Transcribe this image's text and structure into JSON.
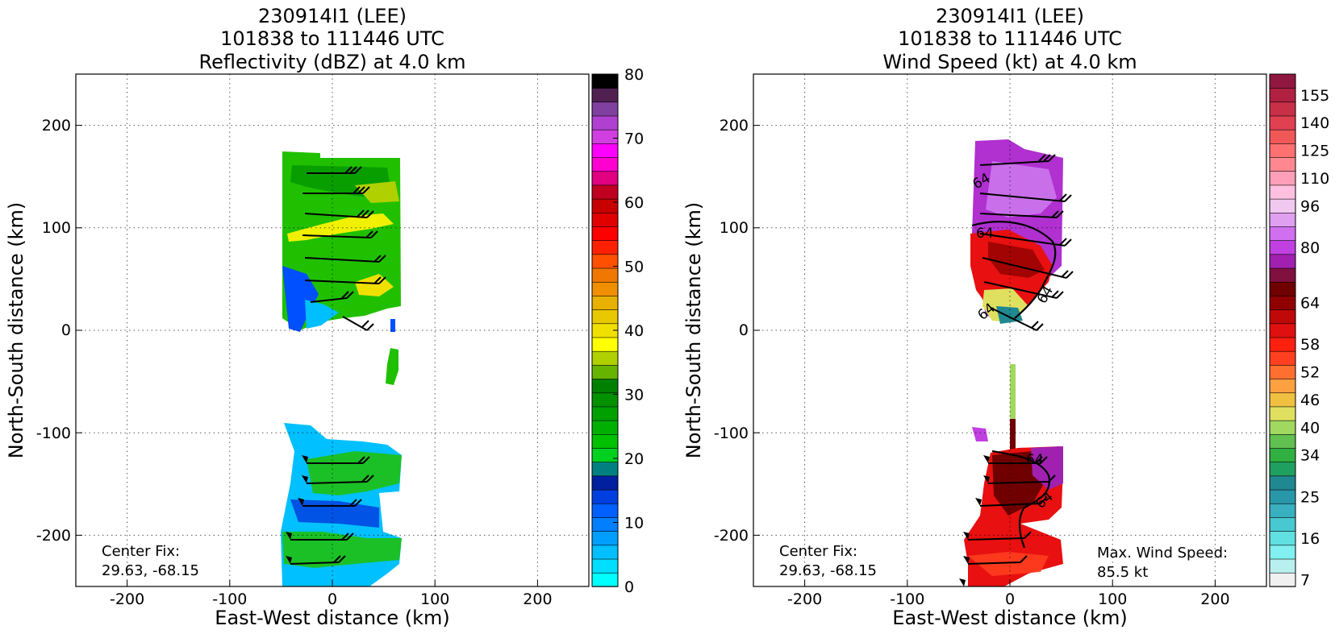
{
  "chart_data": [
    {
      "type": "heatmap",
      "title": [
        "230914I1 (LEE)",
        "101838 to 111446 UTC",
        "Reflectivity (dBZ) at 4.0 km"
      ],
      "xlabel": "East-West distance (km)",
      "ylabel": "North-South distance (km)",
      "xlim": [
        -250,
        250
      ],
      "ylim": [
        -250,
        250
      ],
      "x_ticks": [
        -200,
        -100,
        0,
        100,
        200
      ],
      "y_ticks": [
        -200,
        -100,
        0,
        100,
        200
      ],
      "grid": true,
      "colorbar": {
        "min": 0,
        "max": 80,
        "step": 2.5,
        "tick_labels": [
          "0",
          "10",
          "20",
          "30",
          "40",
          "50",
          "60",
          "70",
          "80"
        ],
        "colors": [
          "#00ffff",
          "#00dfff",
          "#00bfff",
          "#009fff",
          "#007fff",
          "#005fff",
          "#003fdf",
          "#00209f",
          "#008080",
          "#00d020",
          "#00c000",
          "#00b000",
          "#00a000",
          "#009000",
          "#008000",
          "#66b400",
          "#b0d000",
          "#ffff00",
          "#f0e000",
          "#e8c800",
          "#e8b000",
          "#f09000",
          "#f07800",
          "#ff5000",
          "#ff2000",
          "#ff0000",
          "#e00000",
          "#c80000",
          "#c00020",
          "#e00080",
          "#ff00d0",
          "#ff00ff",
          "#d040e0",
          "#b040d0",
          "#8040a0",
          "#502050",
          "#000000"
        ]
      },
      "annotations": [
        "Center Fix:",
        "29.63, -68.15"
      ]
    },
    {
      "type": "heatmap",
      "title": [
        "230914I1 (LEE)",
        "101838 to 111446 UTC",
        "Wind Speed (kt) at 4.0 km"
      ],
      "xlabel": "East-West distance (km)",
      "ylabel": "North-South distance (km)",
      "xlim": [
        -250,
        250
      ],
      "ylim": [
        -250,
        250
      ],
      "x_ticks": [
        -200,
        -100,
        0,
        100,
        200
      ],
      "y_ticks": [
        -200,
        -100,
        0,
        100,
        200
      ],
      "grid": true,
      "contour_labels": [
        "64",
        "64",
        "64",
        "64",
        "64",
        "64"
      ],
      "colorbar": {
        "tick_labels": [
          "7",
          "16",
          "25",
          "34",
          "40",
          "46",
          "52",
          "58",
          "64",
          "80",
          "96",
          "110",
          "125",
          "140",
          "155"
        ],
        "colors": [
          "#f0f0f0",
          "#b8f0f0",
          "#80f0f0",
          "#60e0e0",
          "#48c8d0",
          "#38b0c0",
          "#2898a8",
          "#208890",
          "#20a060",
          "#30b040",
          "#60c050",
          "#a0d860",
          "#e0e060",
          "#f0c040",
          "#ffa040",
          "#ff7030",
          "#ff4020",
          "#ff2010",
          "#e01010",
          "#c00808",
          "#900000",
          "#700000",
          "#801040",
          "#a020b0",
          "#c040e0",
          "#d070f0",
          "#e0a0f0",
          "#f0c8f0",
          "#ffc0e0",
          "#ffa0b8",
          "#ff8890",
          "#ff7070",
          "#f05858",
          "#e04050",
          "#c83048",
          "#b02040",
          "#901840"
        ]
      },
      "annotations": [
        "Center Fix:",
        "29.63, -68.15",
        "Max. Wind Speed:",
        "85.5 kt"
      ]
    }
  ]
}
